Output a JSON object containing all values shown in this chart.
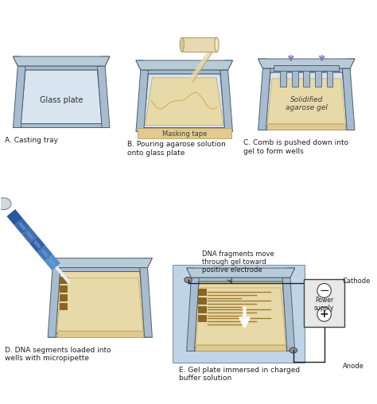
{
  "bg_color": "#ffffff",
  "panel_labels": [
    "A. Casting tray",
    "B. Pouring agarose solution\nonto glass plate",
    "C. Comb is pushed down into\ngel to form wells",
    "D. DNA segments loaded into\nwells with micropipette",
    "E. Gel plate immersed in charged\nbuffer solution"
  ],
  "tray_wall_color": "#a8bcd0",
  "tray_inner_color": "#c8d8e8",
  "tray_edge_color": "#506070",
  "gel_color": "#e8d9a8",
  "gel_edge_color": "#c8a860",
  "tape_color": "#e0ca90",
  "tube_color": "#e8dab0",
  "glass_color": "#d8e4ef",
  "buffer_color": "#c0d4e8",
  "arrow_color": "#8080b8",
  "dna_band_color": "#9B7320",
  "power_box_color": "#e8e8e8",
  "cathode_label": "Cathode",
  "anode_label": "Anode",
  "power_label": "Power\nsupply",
  "minus_label": "−",
  "plus_label": "+",
  "masking_tape_label": "Masking tape",
  "solidified_gel_label": "Solidified\nagarose gel",
  "glass_plate_label": "Glass plate",
  "dna_fragments_label": "DNA fragments move\nthrough gel toward\npositive electrode"
}
